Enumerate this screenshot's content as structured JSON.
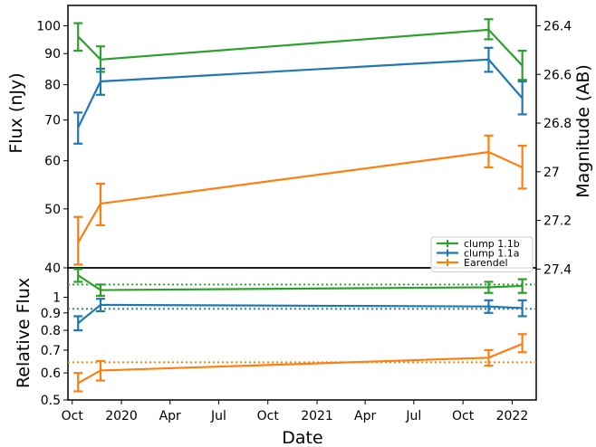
{
  "chart_data": {
    "type": "line",
    "x_axis": {
      "label": "Date",
      "tick_labels": [
        "Oct",
        "2020",
        "Apr",
        "Jul",
        "Oct",
        "2021",
        "Apr",
        "Jul",
        "Oct",
        "2022"
      ],
      "tick_dates": [
        "2019-10-01",
        "2020-01-01",
        "2020-04-01",
        "2020-07-01",
        "2020-10-01",
        "2021-01-01",
        "2021-04-01",
        "2021-07-01",
        "2021-10-01",
        "2022-01-01"
      ],
      "range": [
        "2019-09-23",
        "2022-02-15"
      ]
    },
    "top_panel": {
      "ylabel": "Flux (nJy)",
      "yscale": "log",
      "ylim": [
        40,
        108
      ],
      "yticks": [
        40,
        50,
        60,
        70,
        80,
        90,
        100
      ],
      "right_axis": {
        "label": "Magnitude (AB)",
        "tick_values": [
          26.4,
          26.6,
          26.8,
          27,
          27.2,
          27.4
        ],
        "tick_labels": [
          "26.4",
          "26.6",
          "26.8",
          "27",
          "27.2",
          "27.4"
        ]
      },
      "legend": {
        "placement": "lower right",
        "entries": [
          "clump 1.1b",
          "clump 1.1a",
          "Earendel"
        ]
      },
      "series": [
        {
          "name": "clump 1.1b",
          "color": "#2ca02c",
          "points": [
            {
              "date": "2019-10-12",
              "y": 96.0,
              "err": [
                91.0,
                101.0
              ]
            },
            {
              "date": "2019-11-23",
              "y": 88.0,
              "err": [
                84.0,
                92.5
              ]
            },
            {
              "date": "2021-11-18",
              "y": 98.5,
              "err": [
                95.0,
                102.5
              ]
            },
            {
              "date": "2022-01-20",
              "y": 86.0,
              "err": [
                81.5,
                91.0
              ]
            }
          ]
        },
        {
          "name": "clump 1.1a",
          "color": "#1f77b4",
          "points": [
            {
              "date": "2019-10-12",
              "y": 68.0,
              "err": [
                64.0,
                72.0
              ]
            },
            {
              "date": "2019-11-23",
              "y": 81.0,
              "err": [
                77.0,
                85.0
              ]
            },
            {
              "date": "2021-11-18",
              "y": 88.0,
              "err": [
                84.0,
                92.0
              ]
            },
            {
              "date": "2022-01-20",
              "y": 76.0,
              "err": [
                71.5,
                81.0
              ]
            }
          ]
        },
        {
          "name": "Earendel",
          "color": "#ff7f0e",
          "points": [
            {
              "date": "2019-10-12",
              "y": 44.0,
              "err": [
                40.5,
                48.5
              ]
            },
            {
              "date": "2019-11-23",
              "y": 51.0,
              "err": [
                47.0,
                55.0
              ]
            },
            {
              "date": "2021-11-18",
              "y": 62.0,
              "err": [
                58.5,
                66.0
              ]
            },
            {
              "date": "2022-01-20",
              "y": 58.5,
              "err": [
                54.0,
                63.5
              ]
            }
          ]
        }
      ]
    },
    "bottom_panel": {
      "ylabel": "Relative Flux",
      "yscale": "log",
      "ylim": [
        0.5,
        1.22
      ],
      "yticks": [
        0.5,
        0.6,
        0.7,
        0.8,
        0.9,
        1
      ],
      "ytick_labels": [
        "0.5",
        "0.6",
        "0.7",
        "0.8",
        "0.9",
        "1"
      ],
      "reference_lines": [
        {
          "series": "clump 1.1b",
          "y": 1.09,
          "color": "#2ca02c",
          "style": "dotted"
        },
        {
          "series": "clump 1.1a",
          "y": 0.925,
          "color": "#1f77b4",
          "style": "dotted"
        },
        {
          "series": "Earendel",
          "y": 0.645,
          "color": "#ff7f0e",
          "style": "dotted"
        }
      ],
      "series": [
        {
          "name": "clump 1.1b",
          "color": "#2ca02c",
          "points": [
            {
              "date": "2019-10-12",
              "y": 1.16,
              "err": [
                1.11,
                1.21
              ]
            },
            {
              "date": "2019-11-23",
              "y": 1.05,
              "err": [
                1.01,
                1.09
              ]
            },
            {
              "date": "2021-11-18",
              "y": 1.07,
              "err": [
                1.03,
                1.11
              ]
            },
            {
              "date": "2022-01-20",
              "y": 1.08,
              "err": [
                1.03,
                1.13
              ]
            }
          ]
        },
        {
          "name": "clump 1.1a",
          "color": "#1f77b4",
          "points": [
            {
              "date": "2019-10-12",
              "y": 0.84,
              "err": [
                0.8,
                0.88
              ]
            },
            {
              "date": "2019-11-23",
              "y": 0.95,
              "err": [
                0.91,
                0.99
              ]
            },
            {
              "date": "2021-11-18",
              "y": 0.94,
              "err": [
                0.9,
                0.98
              ]
            },
            {
              "date": "2022-01-20",
              "y": 0.93,
              "err": [
                0.88,
                0.98
              ]
            }
          ]
        },
        {
          "name": "Earendel",
          "color": "#ff7f0e",
          "points": [
            {
              "date": "2019-10-12",
              "y": 0.56,
              "err": [
                0.53,
                0.6
              ]
            },
            {
              "date": "2019-11-23",
              "y": 0.61,
              "err": [
                0.57,
                0.65
              ]
            },
            {
              "date": "2021-11-18",
              "y": 0.665,
              "err": [
                0.63,
                0.7
              ]
            },
            {
              "date": "2022-01-20",
              "y": 0.73,
              "err": [
                0.69,
                0.78
              ]
            }
          ]
        }
      ]
    }
  }
}
